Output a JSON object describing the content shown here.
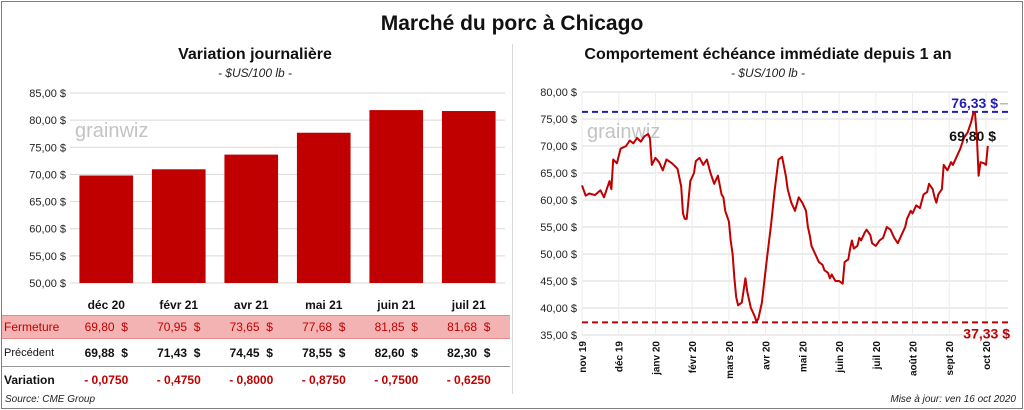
{
  "title": "Marché du porc à Chicago",
  "left_chart": {
    "title": "Variation  journalière",
    "unit": "- $US/100 lb -",
    "watermark": "grainwiz",
    "row_labels": {
      "fermeture": "Fermeture",
      "precedent": "Précédent",
      "variation": "Variation"
    },
    "fermeture_values": [
      "69,80  $",
      "70,95  $",
      "73,65  $",
      "77,68  $",
      "81,85  $",
      "81,68  $"
    ],
    "precedent_values": [
      "69,88  $",
      "71,43  $",
      "74,45  $",
      "78,55  $",
      "82,60  $",
      "82,30  $"
    ],
    "variation_values": [
      "- 0,0750",
      "- 0,4750",
      "- 0,8000",
      "- 0,8750",
      "- 0,7500",
      "- 0,6250"
    ],
    "colors": {
      "bar": "#c00000",
      "fermeture_bg": "#f4b3b3",
      "fermeture_text": "#c00000",
      "variation_text": "#c00000"
    }
  },
  "right_chart": {
    "title": "Comportement  échéance immédiate depuis 1 an",
    "unit": "- $US/100 lb -",
    "watermark": "grainwiz",
    "colors": {
      "line": "#c00000",
      "max": "#1f1fb4",
      "min": "#c00000"
    }
  },
  "chart_data": [
    {
      "type": "bar",
      "categories": [
        "déc 20",
        "févr 21",
        "avr 21",
        "mai 21",
        "juin 21",
        "juil 21"
      ],
      "values": [
        69.8,
        70.95,
        73.65,
        77.68,
        81.85,
        81.68
      ],
      "ylim": [
        50,
        85
      ],
      "yticks": [
        "50,00 $",
        "55,00 $",
        "60,00 $",
        "65,00 $",
        "70,00 $",
        "75,00 $",
        "80,00 $",
        "85,00 $"
      ],
      "grid": true
    },
    {
      "type": "line",
      "ylim": [
        35,
        80
      ],
      "yticks": [
        "35,00 $",
        "40,00 $",
        "45,00 $",
        "50,00 $",
        "55,00 $",
        "60,00 $",
        "65,00 $",
        "70,00 $",
        "75,00 $",
        "80,00 $"
      ],
      "xticks": [
        "nov 19",
        "déc 19",
        "janv 20",
        "févr 20",
        "mars 20",
        "avr 20",
        "mai 20",
        "juin 20",
        "juil 20",
        "août 20",
        "sept 20",
        "oct 20"
      ],
      "x_range": [
        0,
        11.6
      ],
      "points": [
        [
          0,
          62.7
        ],
        [
          0.1,
          60.8
        ],
        [
          0.2,
          61.2
        ],
        [
          0.35,
          60.9
        ],
        [
          0.5,
          61.8
        ],
        [
          0.6,
          60.5
        ],
        [
          0.75,
          63.5
        ],
        [
          0.8,
          62.0
        ],
        [
          0.85,
          67.5
        ],
        [
          0.95,
          66.8
        ],
        [
          1.05,
          69.5
        ],
        [
          1.2,
          70.0
        ],
        [
          1.3,
          71.0
        ],
        [
          1.4,
          70.5
        ],
        [
          1.5,
          71.5
        ],
        [
          1.6,
          70.8
        ],
        [
          1.7,
          71.8
        ],
        [
          1.8,
          72.2
        ],
        [
          1.85,
          71.5
        ],
        [
          1.9,
          66.5
        ],
        [
          2.0,
          67.8
        ],
        [
          2.1,
          67.0
        ],
        [
          2.2,
          65.5
        ],
        [
          2.3,
          67.5
        ],
        [
          2.45,
          66.8
        ],
        [
          2.6,
          65.8
        ],
        [
          2.7,
          62.5
        ],
        [
          2.75,
          57.5
        ],
        [
          2.8,
          56.5
        ],
        [
          2.85,
          56.5
        ],
        [
          2.95,
          63.5
        ],
        [
          3.05,
          65.0
        ],
        [
          3.1,
          67.2
        ],
        [
          3.2,
          67.8
        ],
        [
          3.3,
          66.5
        ],
        [
          3.4,
          67.5
        ],
        [
          3.5,
          65.0
        ],
        [
          3.6,
          63.0
        ],
        [
          3.7,
          64.5
        ],
        [
          3.8,
          61.0
        ],
        [
          3.85,
          60.5
        ],
        [
          3.9,
          58.0
        ],
        [
          4.0,
          56.0
        ],
        [
          4.05,
          52.5
        ],
        [
          4.1,
          50.0
        ],
        [
          4.15,
          45.5
        ],
        [
          4.2,
          42.0
        ],
        [
          4.25,
          40.5
        ],
        [
          4.35,
          41.0
        ],
        [
          4.45,
          45.5
        ],
        [
          4.5,
          43.0
        ],
        [
          4.6,
          40.0
        ],
        [
          4.7,
          38.5
        ],
        [
          4.75,
          37.5
        ],
        [
          4.8,
          38.0
        ],
        [
          4.9,
          41.0
        ],
        [
          5.0,
          47.0
        ],
        [
          5.05,
          50.0
        ],
        [
          5.15,
          55.5
        ],
        [
          5.25,
          62.0
        ],
        [
          5.35,
          67.5
        ],
        [
          5.45,
          68.0
        ],
        [
          5.55,
          64.5
        ],
        [
          5.6,
          62.0
        ],
        [
          5.7,
          59.5
        ],
        [
          5.8,
          58.0
        ],
        [
          5.9,
          60.5
        ],
        [
          6.0,
          59.5
        ],
        [
          6.1,
          58.0
        ],
        [
          6.15,
          55.0
        ],
        [
          6.2,
          53.5
        ],
        [
          6.25,
          51.5
        ],
        [
          6.35,
          50.0
        ],
        [
          6.45,
          48.5
        ],
        [
          6.55,
          48.0
        ],
        [
          6.6,
          47.0
        ],
        [
          6.7,
          46.5
        ],
        [
          6.75,
          45.5
        ],
        [
          6.8,
          46.2
        ],
        [
          6.9,
          45.0
        ],
        [
          7.0,
          45.0
        ],
        [
          7.1,
          44.5
        ],
        [
          7.15,
          48.5
        ],
        [
          7.25,
          49.0
        ],
        [
          7.3,
          51.0
        ],
        [
          7.35,
          52.5
        ],
        [
          7.4,
          51.0
        ],
        [
          7.5,
          51.5
        ],
        [
          7.55,
          53.0
        ],
        [
          7.6,
          52.5
        ],
        [
          7.7,
          54.0
        ],
        [
          7.75,
          54.5
        ],
        [
          7.85,
          53.5
        ],
        [
          7.9,
          52.0
        ],
        [
          8.0,
          51.5
        ],
        [
          8.1,
          52.5
        ],
        [
          8.2,
          53.0
        ],
        [
          8.3,
          55.0
        ],
        [
          8.4,
          54.5
        ],
        [
          8.5,
          53.0
        ],
        [
          8.6,
          52.0
        ],
        [
          8.7,
          53.5
        ],
        [
          8.8,
          55.0
        ],
        [
          8.85,
          56.5
        ],
        [
          8.95,
          58.0
        ],
        [
          9.0,
          57.5
        ],
        [
          9.1,
          59.0
        ],
        [
          9.2,
          58.5
        ],
        [
          9.3,
          61.0
        ],
        [
          9.4,
          61.5
        ],
        [
          9.45,
          63.0
        ],
        [
          9.55,
          62.0
        ],
        [
          9.6,
          60.5
        ],
        [
          9.65,
          59.5
        ],
        [
          9.7,
          61.0
        ],
        [
          9.8,
          62.0
        ],
        [
          9.85,
          66.5
        ],
        [
          9.95,
          65.5
        ],
        [
          10.05,
          67.0
        ],
        [
          10.1,
          66.5
        ],
        [
          10.2,
          68.0
        ],
        [
          10.3,
          69.5
        ],
        [
          10.4,
          71.5
        ],
        [
          10.5,
          72.5
        ],
        [
          10.6,
          74.5
        ],
        [
          10.65,
          76.0
        ],
        [
          10.7,
          76.3
        ],
        [
          10.75,
          72.0
        ],
        [
          10.8,
          64.5
        ],
        [
          10.85,
          67.0
        ],
        [
          10.95,
          66.8
        ],
        [
          11.0,
          66.5
        ],
        [
          11.05,
          70.0
        ]
      ],
      "max": {
        "value": 76.33,
        "label": "76,33 $"
      },
      "min": {
        "value": 37.33,
        "label": "37,33 $"
      },
      "last": {
        "value": 69.8,
        "label": "69,80 $"
      },
      "grid": true
    }
  ],
  "footer": {
    "source": "Source: CME Group",
    "updated": "Mise à jour: ven 16 oct 2020"
  }
}
